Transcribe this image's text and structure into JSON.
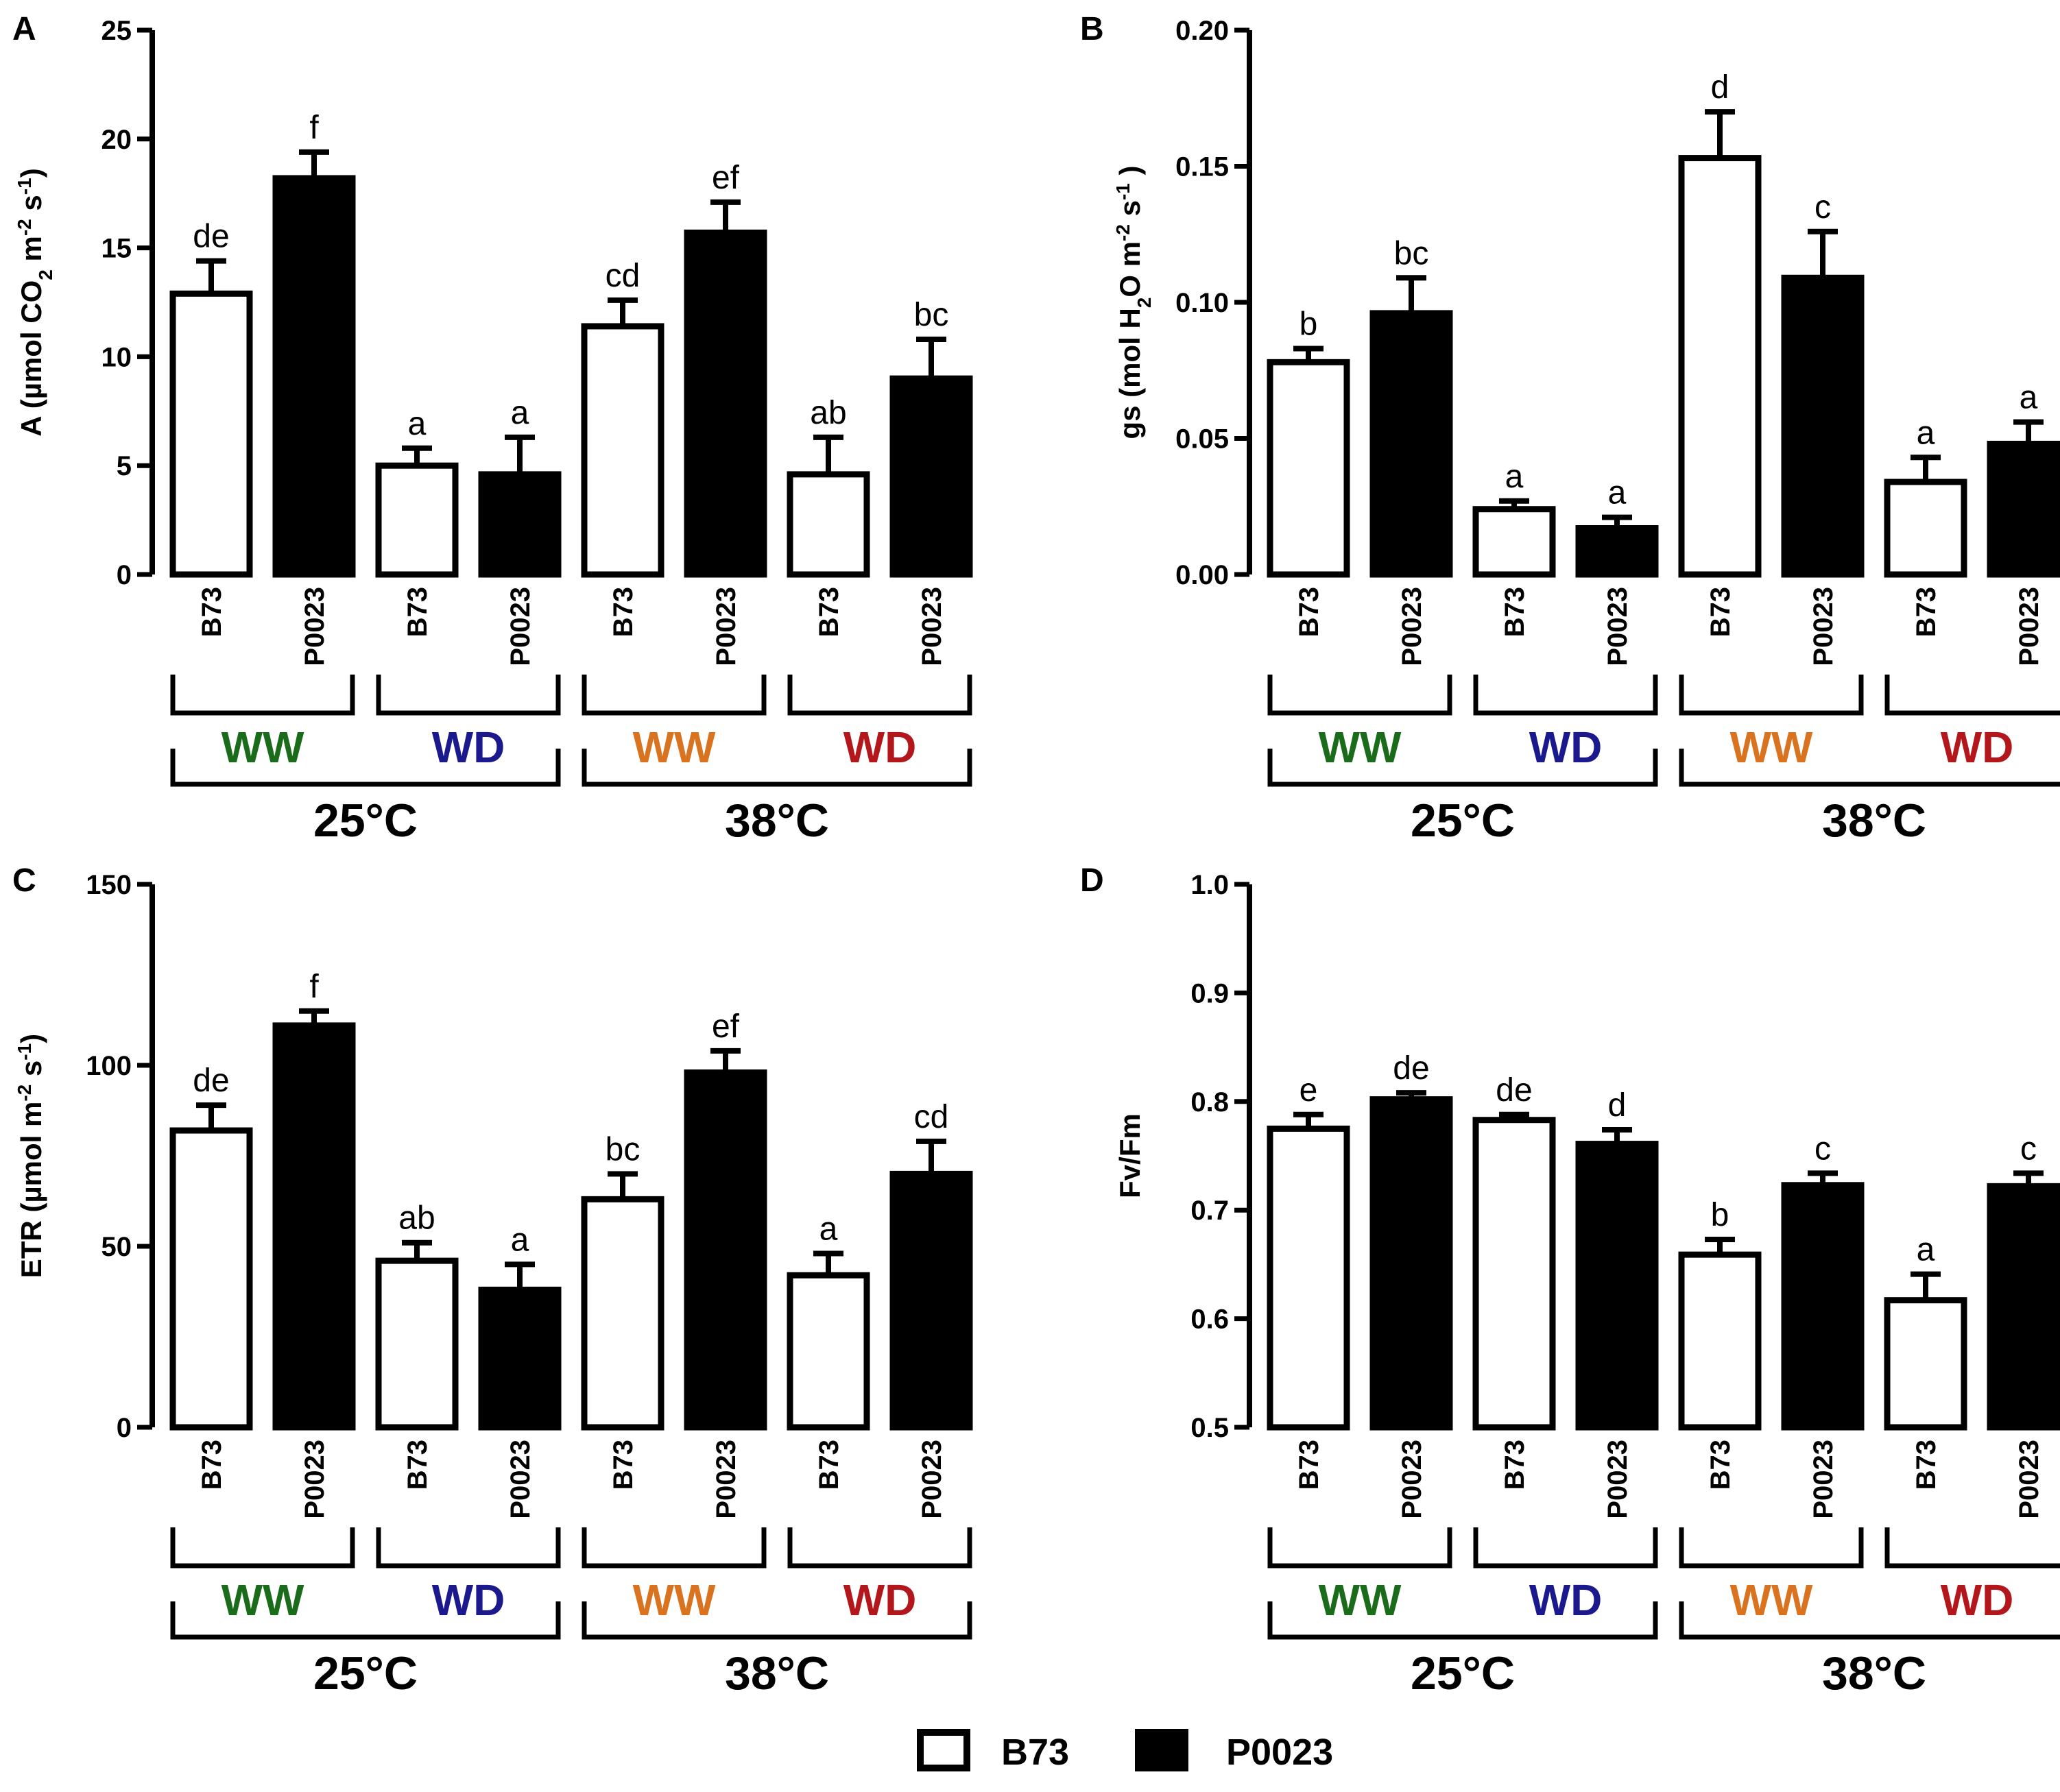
{
  "colors": {
    "ww_25": "#1a6b1a",
    "wd_25": "#1a1a8c",
    "ww_38": "#d9731f",
    "wd_38": "#b3161b",
    "bar_B73": "#ffffff",
    "bar_P0023": "#000000"
  },
  "legend": {
    "items": [
      {
        "label": "B73",
        "fill": "#ffffff"
      },
      {
        "label": "P0023",
        "fill": "#000000"
      }
    ]
  },
  "groups": {
    "genotypes": [
      "B73",
      "P0023",
      "B73",
      "P0023",
      "B73",
      "P0023",
      "B73",
      "P0023"
    ],
    "treatments": [
      "WW",
      "WD",
      "WW",
      "WD"
    ],
    "temperatures": [
      "25°C",
      "38°C"
    ]
  },
  "chart_data": [
    {
      "panel": "A",
      "type": "bar",
      "title": "",
      "ylabel": "A (µmol CO2 m-2 s-1)",
      "ylabel_parts": {
        "main": "A (µmol CO",
        "sub": "2",
        "mid": " m",
        "sup1": "-2",
        "mid2": " s",
        "sup2": "-1",
        "end": ")"
      },
      "ylim": [
        0,
        25
      ],
      "yticks": [
        "0",
        "5",
        "10",
        "15",
        "20",
        "25"
      ],
      "categories": [
        "B73",
        "P0023",
        "B73",
        "P0023",
        "B73",
        "P0023",
        "B73",
        "P0023"
      ],
      "treatments": [
        "WW",
        "WW",
        "WD",
        "WD",
        "WW",
        "WW",
        "WD",
        "WD"
      ],
      "temperatures": [
        "25°C",
        "25°C",
        "25°C",
        "25°C",
        "38°C",
        "38°C",
        "38°C",
        "38°C"
      ],
      "values": [
        12.9,
        18.2,
        5.0,
        4.6,
        11.4,
        15.7,
        4.6,
        9.0
      ],
      "errors": [
        1.5,
        1.2,
        0.8,
        1.7,
        1.2,
        1.4,
        1.7,
        1.8
      ],
      "letters": [
        "de",
        "f",
        "a",
        "a",
        "cd",
        "ef",
        "ab",
        "bc"
      ]
    },
    {
      "panel": "B",
      "type": "bar",
      "title": "",
      "ylabel": "gs (mol H2O m-2 s-1 )",
      "ylabel_parts": {
        "main": "gs (mol H",
        "sub": "2",
        "mid": "O m",
        "sup1": "-2",
        "mid2": " s",
        "sup2": "-1",
        "end": " )"
      },
      "ylim": [
        0,
        0.2
      ],
      "yticks": [
        "0.00",
        "0.05",
        "0.10",
        "0.15",
        "0.20"
      ],
      "categories": [
        "B73",
        "P0023",
        "B73",
        "P0023",
        "B73",
        "P0023",
        "B73",
        "P0023"
      ],
      "treatments": [
        "WW",
        "WW",
        "WD",
        "WD",
        "WW",
        "WW",
        "WD",
        "WD"
      ],
      "temperatures": [
        "25°C",
        "25°C",
        "25°C",
        "25°C",
        "38°C",
        "38°C",
        "38°C",
        "38°C"
      ],
      "values": [
        0.078,
        0.096,
        0.024,
        0.017,
        0.153,
        0.109,
        0.034,
        0.048
      ],
      "errors": [
        0.005,
        0.013,
        0.003,
        0.004,
        0.017,
        0.017,
        0.009,
        0.008
      ],
      "letters": [
        "b",
        "bc",
        "a",
        "a",
        "d",
        "c",
        "a",
        "a"
      ]
    },
    {
      "panel": "C",
      "type": "bar",
      "title": "",
      "ylabel": "ETR (µmol m-2 s-1)",
      "ylabel_parts": {
        "main": "ETR (µmol m",
        "sub": "",
        "mid": "",
        "sup1": "-2",
        "mid2": " s",
        "sup2": "-1",
        "end": ")"
      },
      "ylim": [
        0,
        150
      ],
      "yticks": [
        "0",
        "50",
        "100",
        "150"
      ],
      "categories": [
        "B73",
        "P0023",
        "B73",
        "P0023",
        "B73",
        "P0023",
        "B73",
        "P0023"
      ],
      "treatments": [
        "WW",
        "WW",
        "WD",
        "WD",
        "WW",
        "WW",
        "WD",
        "WD"
      ],
      "temperatures": [
        "25°C",
        "25°C",
        "25°C",
        "25°C",
        "38°C",
        "38°C",
        "38°C",
        "38°C"
      ],
      "values": [
        82,
        111,
        46,
        38,
        63,
        98,
        42,
        70
      ],
      "errors": [
        7,
        4,
        5,
        7,
        7,
        6,
        6,
        9
      ],
      "letters": [
        "de",
        "f",
        "ab",
        "a",
        "bc",
        "ef",
        "a",
        "cd"
      ]
    },
    {
      "panel": "D",
      "type": "bar",
      "title": "",
      "ylabel": "Fv/Fm",
      "ylabel_parts": {
        "main": "Fv/Fm",
        "sub": "",
        "mid": "",
        "sup1": "",
        "mid2": "",
        "sup2": "",
        "end": ""
      },
      "ylim": [
        0.5,
        1.0
      ],
      "yticks": [
        "0.5",
        "0.6",
        "0.7",
        "0.8",
        "0.9",
        "1.0"
      ],
      "categories": [
        "B73",
        "P0023",
        "B73",
        "P0023",
        "B73",
        "P0023",
        "B73",
        "P0023"
      ],
      "treatments": [
        "WW",
        "WW",
        "WD",
        "WD",
        "WW",
        "WW",
        "WD",
        "WD"
      ],
      "temperatures": [
        "25°C",
        "25°C",
        "25°C",
        "25°C",
        "38°C",
        "38°C",
        "38°C",
        "38°C"
      ],
      "values": [
        0.775,
        0.802,
        0.783,
        0.761,
        0.659,
        0.723,
        0.617,
        0.722
      ],
      "errors": [
        0.013,
        0.006,
        0.005,
        0.013,
        0.014,
        0.011,
        0.024,
        0.012
      ],
      "letters": [
        "e",
        "de",
        "de",
        "d",
        "b",
        "c",
        "a",
        "c"
      ]
    }
  ]
}
